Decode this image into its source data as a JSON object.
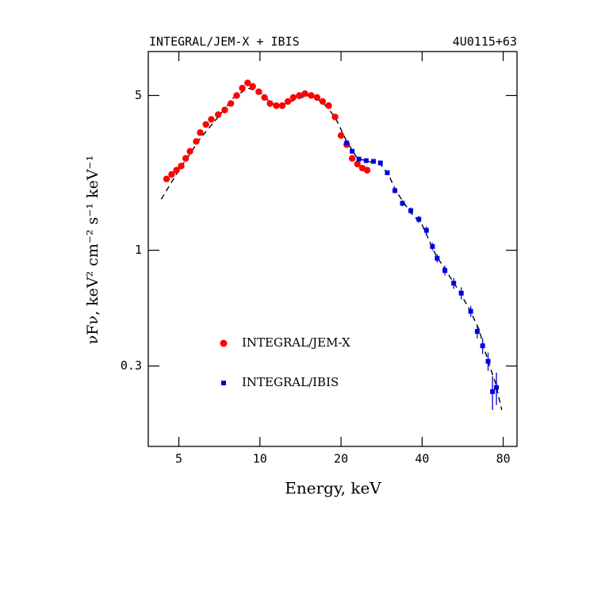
{
  "chart_data": {
    "type": "scatter",
    "title": "INTEGRAL/JEM-X + IBIS",
    "subtitle": "4U0115+63",
    "x_label": "Energy, keV",
    "y_label": "νFν, keV² cm⁻² s⁻¹ keV⁻¹",
    "xlog": true,
    "ylog": true,
    "xlim": [
      3.85,
      90
    ],
    "ylim": [
      0.13,
      7.9
    ],
    "xticks": [
      5,
      10,
      20,
      40,
      80
    ],
    "yticks": [
      0.3,
      1,
      5
    ],
    "series": [
      {
        "name": "INTEGRAL/JEM-X",
        "color": "#ff0000",
        "marker": "circle",
        "x": [
          4.5,
          4.7,
          4.9,
          5.1,
          5.3,
          5.5,
          5.8,
          6.0,
          6.3,
          6.6,
          7.0,
          7.4,
          7.8,
          8.2,
          8.6,
          9.0,
          9.4,
          9.9,
          10.4,
          10.9,
          11.5,
          12.1,
          12.7,
          13.3,
          14.0,
          14.7,
          15.5,
          16.3,
          17.1,
          18.0,
          19.0,
          20.0,
          21.0,
          22.0,
          23.0,
          24.0,
          25.0
        ],
        "values": [
          2.1,
          2.2,
          2.3,
          2.4,
          2.6,
          2.8,
          3.1,
          3.4,
          3.7,
          3.9,
          4.1,
          4.3,
          4.6,
          5.0,
          5.4,
          5.7,
          5.5,
          5.2,
          4.9,
          4.6,
          4.5,
          4.5,
          4.7,
          4.9,
          5.0,
          5.1,
          5.0,
          4.9,
          4.7,
          4.5,
          4.0,
          3.3,
          3.0,
          2.6,
          2.45,
          2.35,
          2.3
        ]
      },
      {
        "name": "INTEGRAL/IBIS",
        "color": "#0000dd",
        "marker": "square",
        "x": [
          21.0,
          22.0,
          23.3,
          24.8,
          26.4,
          28.0,
          29.7,
          31.7,
          33.8,
          36.3,
          38.9,
          41.5,
          43.7,
          45.5,
          48.6,
          52.4,
          55.9,
          60.6,
          64.1,
          67.1,
          70.3,
          73.0,
          75.5
        ],
        "values": [
          3.05,
          2.8,
          2.58,
          2.54,
          2.52,
          2.48,
          2.24,
          1.86,
          1.63,
          1.51,
          1.38,
          1.23,
          1.04,
          0.92,
          0.81,
          0.71,
          0.64,
          0.53,
          0.43,
          0.37,
          0.315,
          0.23,
          0.24
        ],
        "errors": [
          0.05,
          0.05,
          0.05,
          0.05,
          0.05,
          0.05,
          0.05,
          0.05,
          0.05,
          0.05,
          0.05,
          0.05,
          0.04,
          0.04,
          0.04,
          0.04,
          0.04,
          0.03,
          0.03,
          0.03,
          0.03,
          0.04,
          0.04
        ]
      }
    ],
    "model": {
      "x": [
        4.3,
        5,
        6,
        7,
        8,
        9,
        10,
        11,
        12,
        13,
        15,
        17,
        19,
        21,
        23,
        26,
        28,
        30,
        32,
        36,
        40,
        45,
        50,
        55,
        60,
        65,
        70,
        75,
        79
      ],
      "values": [
        1.7,
        2.3,
        3.2,
        4.0,
        4.9,
        5.4,
        5.2,
        4.6,
        4.5,
        4.7,
        5.0,
        4.7,
        4.0,
        3.1,
        2.6,
        2.5,
        2.45,
        2.2,
        1.85,
        1.5,
        1.3,
        0.95,
        0.78,
        0.65,
        0.54,
        0.44,
        0.32,
        0.25,
        0.19
      ]
    }
  }
}
